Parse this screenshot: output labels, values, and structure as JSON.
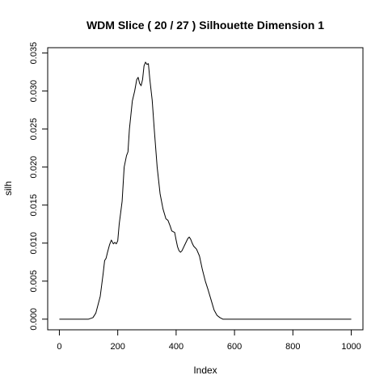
{
  "chart_data": {
    "type": "line",
    "title": "WDM Slice ( 20 / 27 )  Silhouette Dimension 1",
    "xlabel": "Index",
    "ylabel": "silh",
    "xlim": [
      -40,
      1040
    ],
    "ylim": [
      -0.0014,
      0.0357
    ],
    "x_ticks": [
      0,
      200,
      400,
      600,
      800,
      1000
    ],
    "x_tick_labels": [
      "0",
      "200",
      "400",
      "600",
      "800",
      "1000"
    ],
    "y_ticks": [
      0.0,
      0.005,
      0.01,
      0.015,
      0.02,
      0.025,
      0.03,
      0.035
    ],
    "y_tick_labels": [
      "0.000",
      "0.005",
      "0.010",
      "0.015",
      "0.020",
      "0.025",
      "0.030",
      "0.035"
    ],
    "grid": false,
    "series": [
      {
        "color": "#000000",
        "x": [
          0,
          50,
          100,
          115,
          125,
          140,
          150,
          155,
          160,
          165,
          172,
          178,
          185,
          190,
          195,
          200,
          205,
          210,
          215,
          222,
          230,
          235,
          240,
          250,
          258,
          265,
          270,
          275,
          280,
          285,
          290,
          295,
          300,
          305,
          310,
          318,
          325,
          335,
          345,
          355,
          365,
          372,
          380,
          385,
          390,
          395,
          400,
          405,
          410,
          415,
          420,
          430,
          440,
          445,
          450,
          455,
          460,
          465,
          470,
          480,
          490,
          500,
          510,
          520,
          530,
          540,
          550,
          560,
          575,
          600,
          700,
          800,
          900,
          1000
        ],
        "y": [
          0.0,
          0.0,
          0.0,
          0.0002,
          0.0008,
          0.003,
          0.006,
          0.0077,
          0.008,
          0.0088,
          0.0098,
          0.0104,
          0.0099,
          0.0101,
          0.0099,
          0.0103,
          0.0125,
          0.014,
          0.0155,
          0.02,
          0.0215,
          0.022,
          0.025,
          0.0287,
          0.03,
          0.0315,
          0.0318,
          0.031,
          0.0307,
          0.0315,
          0.0333,
          0.0338,
          0.0335,
          0.0336,
          0.0315,
          0.0288,
          0.025,
          0.02,
          0.0165,
          0.0145,
          0.0132,
          0.013,
          0.0122,
          0.0116,
          0.0115,
          0.0114,
          0.0104,
          0.0095,
          0.009,
          0.0088,
          0.009,
          0.0098,
          0.0106,
          0.0108,
          0.0105,
          0.01,
          0.0096,
          0.0094,
          0.0092,
          0.0083,
          0.0065,
          0.005,
          0.0038,
          0.0025,
          0.0012,
          0.0005,
          0.0002,
          0.0,
          0.0,
          0.0,
          0.0,
          0.0,
          0.0,
          0.0
        ]
      }
    ]
  }
}
